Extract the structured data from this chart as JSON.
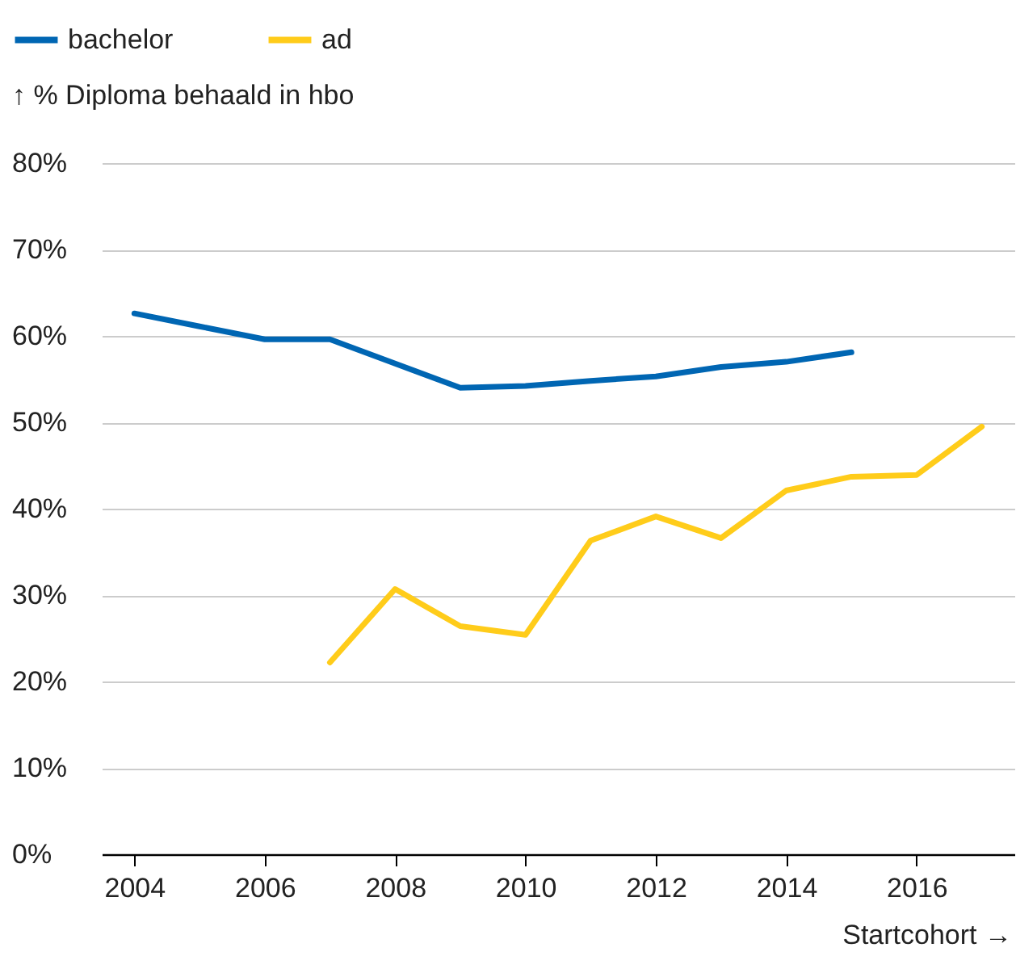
{
  "chart_data": {
    "type": "line",
    "xlabel": "Startcohort →",
    "ylabel": "↑ % Diploma behaald in hbo",
    "x": [
      2004,
      2005,
      2006,
      2007,
      2008,
      2009,
      2010,
      2011,
      2012,
      2013,
      2014,
      2015,
      2016,
      2017
    ],
    "series": [
      {
        "name": "bachelor",
        "color": "#0066b3",
        "values": [
          62.6,
          61.1,
          59.6,
          59.6,
          56.8,
          54.0,
          54.2,
          54.8,
          55.3,
          56.4,
          57.0,
          58.1,
          null,
          null
        ]
      },
      {
        "name": "ad",
        "color": "#ffcc1a",
        "values": [
          null,
          null,
          null,
          22.2,
          30.7,
          26.4,
          25.4,
          36.3,
          39.1,
          36.6,
          42.1,
          43.7,
          43.9,
          49.5
        ]
      }
    ],
    "xlim": [
      2003.5,
      2017.5
    ],
    "xticks": [
      2004,
      2006,
      2008,
      2010,
      2012,
      2014,
      2016
    ],
    "ylim": [
      0,
      80
    ],
    "yticks": [
      {
        "value": 0,
        "label": "0%"
      },
      {
        "value": 10,
        "label": "10%"
      },
      {
        "value": 20,
        "label": "20%"
      },
      {
        "value": 30,
        "label": "30%"
      },
      {
        "value": 40,
        "label": "40%"
      },
      {
        "value": 50,
        "label": "50%"
      },
      {
        "value": 60,
        "label": "60%"
      },
      {
        "value": 70,
        "label": "70%"
      },
      {
        "value": 80,
        "label": "80%"
      }
    ],
    "grid": "y",
    "legend": "top left",
    "marker": "none",
    "line_style": "solid"
  }
}
